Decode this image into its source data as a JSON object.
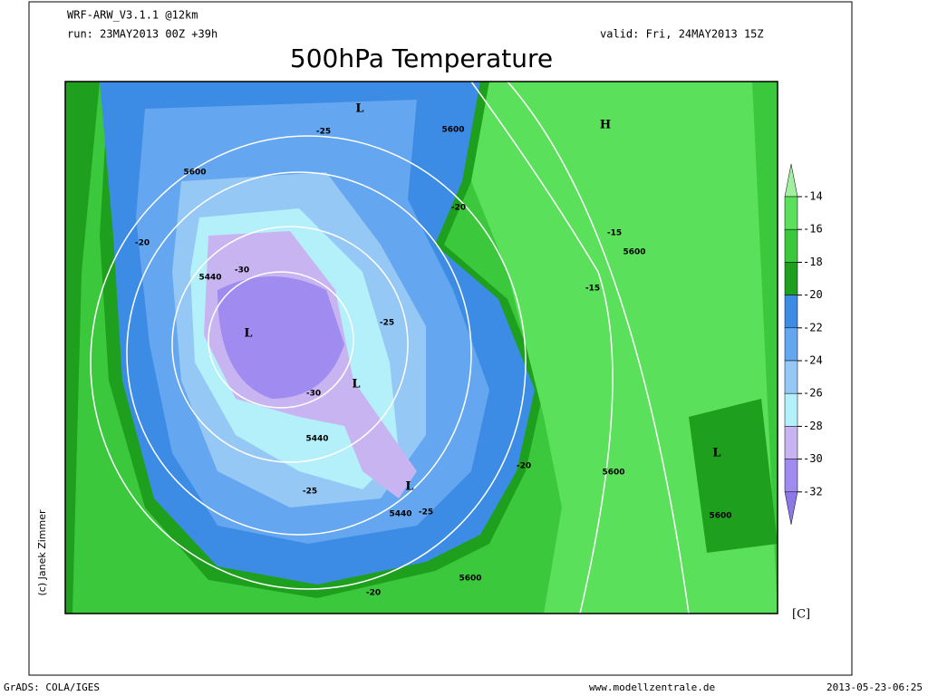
{
  "header": {
    "model": "WRF-ARW_V3.1.1 @12km",
    "run": "run: 23MAY2013 00Z +39h",
    "valid": "valid: Fri, 24MAY2013 15Z",
    "title": "500hPa Temperature"
  },
  "colorbar": {
    "levels": [
      -14,
      -16,
      -18,
      -20,
      -22,
      -24,
      -26,
      -28,
      -30,
      -32
    ],
    "colors": [
      "#a0f0a0",
      "#5ae05a",
      "#3cc83c",
      "#1ea01e",
      "#3c8ce6",
      "#64a6f0",
      "#96c8f5",
      "#b4f0fa",
      "#c8b4f0",
      "#a08cf0",
      "#8c78e6"
    ],
    "unit": "[C]"
  },
  "map_labels": [
    "L",
    "H",
    "5600",
    "5600",
    "-25",
    "-20",
    "-20",
    "-15",
    "5600",
    "-15",
    "5440",
    "-30",
    "L",
    "-25",
    "L",
    "-30",
    "5440",
    "-20",
    "5600",
    "L",
    "L",
    "5440",
    "-25",
    "-25",
    "5600",
    "5600",
    "-20"
  ],
  "credit": "(c) Janek Zimmer",
  "footer": {
    "left": "GrADS: COLA/IGES",
    "center": "www.modellzentrale.de",
    "right": "2013-05-23-06:25"
  }
}
